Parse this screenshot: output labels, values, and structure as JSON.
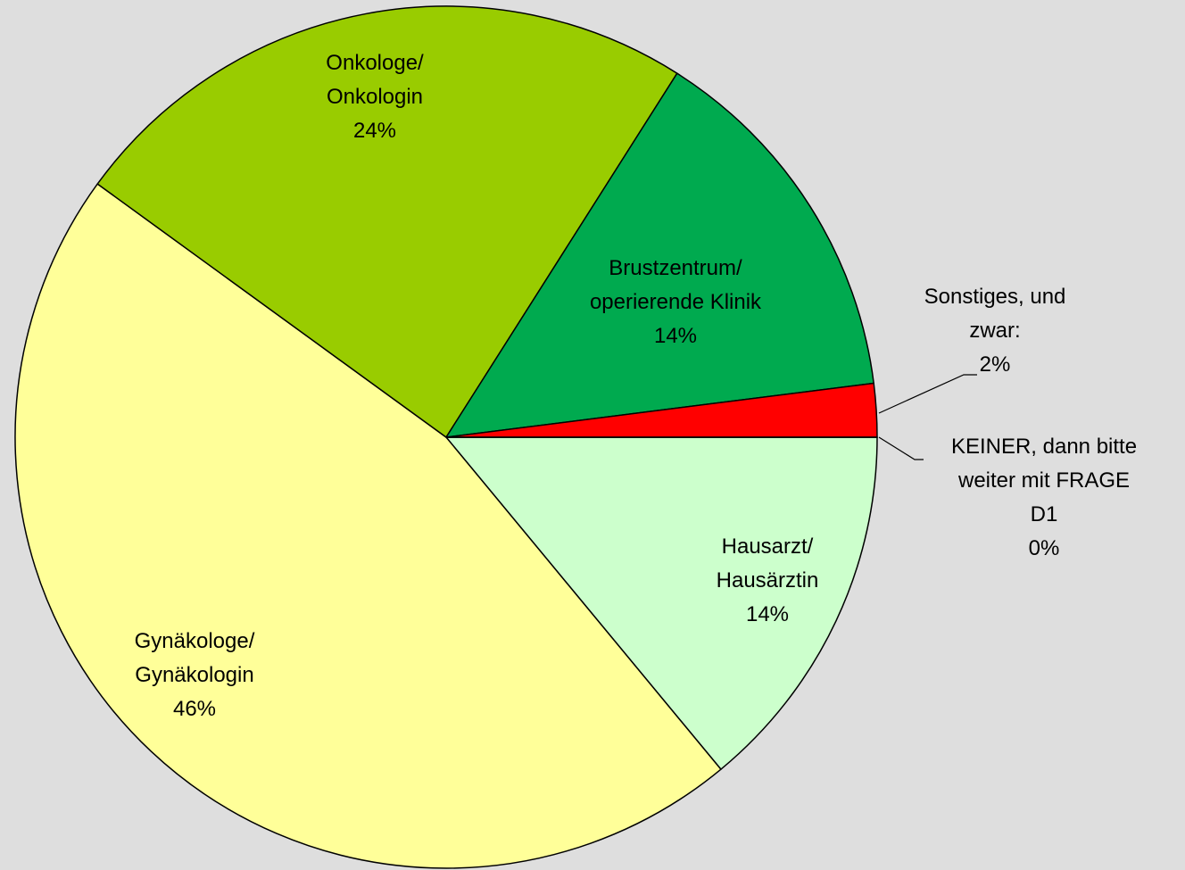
{
  "chart_data": {
    "type": "pie",
    "categories": [
      "Hausarzt/\nHausärztin",
      "Gynäkologe/\nGynäkologin",
      "Onkologe/\nOnkologin",
      "Brustzentrum/\noperierende Klinik",
      "Sonstiges, und\nzwar:",
      "KEINER, dann bitte\nweiter mit FRAGE\nD1"
    ],
    "values": [
      14,
      46,
      24,
      14,
      2,
      0
    ],
    "value_labels": [
      "14%",
      "46%",
      "24%",
      "14%",
      "2%",
      "0%"
    ],
    "colors": [
      "#ccffcc",
      "#ffff99",
      "#99cc00",
      "#00aa4f",
      "#ff0000",
      "#3366ff"
    ]
  }
}
